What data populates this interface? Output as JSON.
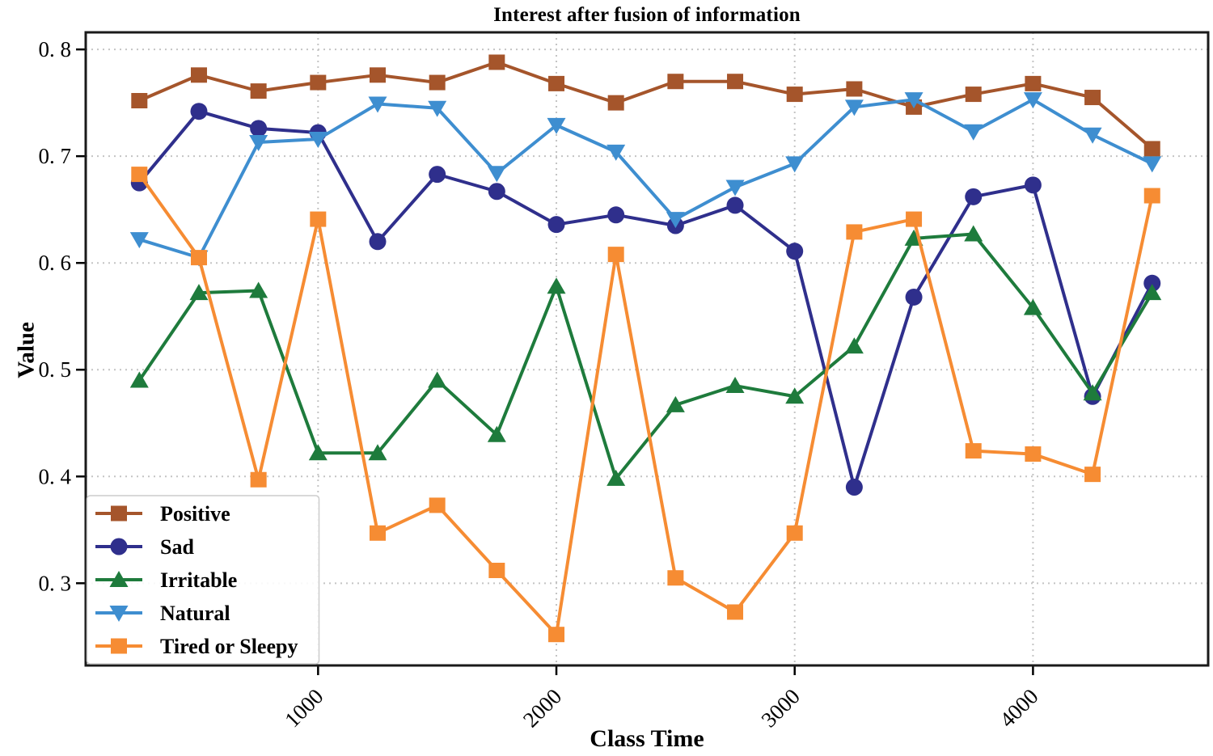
{
  "chart_data": {
    "type": "line",
    "title": "Interest after fusion of information",
    "xlabel": "Class Time",
    "ylabel": "Value",
    "grid": true,
    "grid_style": "dotted",
    "legend_position": "lower left",
    "xlim": [
      25,
      4735
    ],
    "ylim": [
      0.223,
      0.816
    ],
    "xticks": {
      "values": [
        1000,
        2000,
        3000,
        4000
      ],
      "labels": [
        "1000",
        "2000",
        "3000",
        "4000"
      ]
    },
    "yticks": {
      "values": [
        0.3,
        0.4,
        0.5,
        0.6,
        0.7,
        0.8
      ],
      "labels": [
        "0. 3",
        "0. 4",
        "0. 5",
        "0. 6",
        "0. 7",
        "0. 8"
      ]
    },
    "x": [
      250,
      500,
      750,
      1000,
      1250,
      1500,
      1750,
      2000,
      2250,
      2500,
      2750,
      3000,
      3250,
      3500,
      3750,
      4000,
      4250,
      4500
    ],
    "series": [
      {
        "name": "Positive",
        "color": "#A5552B",
        "marker": "square",
        "values": [
          0.752,
          0.776,
          0.761,
          0.769,
          0.776,
          0.769,
          0.788,
          0.768,
          0.75,
          0.77,
          0.77,
          0.758,
          0.763,
          0.746,
          0.758,
          0.768,
          0.755,
          0.707
        ]
      },
      {
        "name": "Sad",
        "color": "#2F2F8C",
        "marker": "circle",
        "values": [
          0.675,
          0.742,
          0.726,
          0.722,
          0.62,
          0.683,
          0.667,
          0.636,
          0.645,
          0.635,
          0.654,
          0.611,
          0.39,
          0.568,
          0.662,
          0.673,
          0.475,
          0.581
        ]
      },
      {
        "name": "Irritable",
        "color": "#1E7B3C",
        "marker": "triangle-up",
        "values": [
          0.49,
          0.572,
          0.574,
          0.422,
          0.422,
          0.49,
          0.439,
          0.578,
          0.398,
          0.467,
          0.485,
          0.475,
          0.522,
          0.623,
          0.627,
          0.558,
          0.478,
          0.572
        ]
      },
      {
        "name": "Natural",
        "color": "#3E8ED0",
        "marker": "triangle-down",
        "values": [
          0.622,
          0.605,
          0.713,
          0.716,
          0.749,
          0.745,
          0.684,
          0.729,
          0.704,
          0.641,
          0.671,
          0.693,
          0.746,
          0.753,
          0.723,
          0.753,
          0.72,
          0.693
        ]
      },
      {
        "name": "Tired or Sleepy",
        "color": "#F68C33",
        "marker": "square",
        "values": [
          0.683,
          0.605,
          0.397,
          0.641,
          0.347,
          0.373,
          0.312,
          0.252,
          0.608,
          0.305,
          0.273,
          0.347,
          0.629,
          0.641,
          0.424,
          0.421,
          0.402,
          0.663
        ]
      }
    ],
    "style": {
      "grid_color": "#C4C4C4",
      "frame_color": "#1A1A1A",
      "legend_border": "#CCCCCC",
      "legend_bg": "#FFFFFF"
    }
  }
}
